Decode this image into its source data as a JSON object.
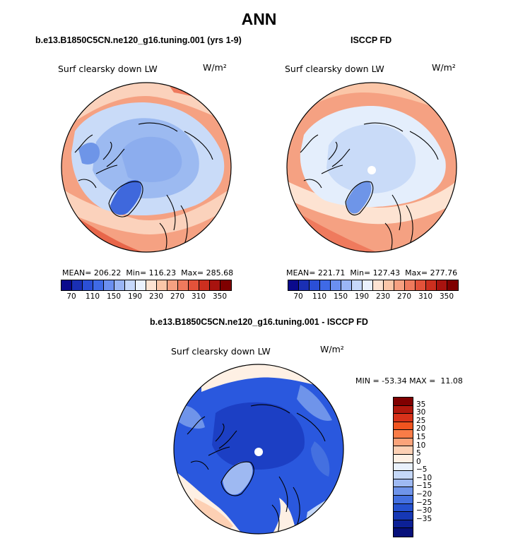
{
  "figure_title": "ANN",
  "panels": {
    "model": {
      "header": "b.e13.B1850C5CN.ne120_g16.tuning.001 (yrs 1-9)",
      "variable": "Surf clearsky down LW",
      "units": "W/m²",
      "stats": {
        "mean_label": "MEAN=",
        "mean": "206.22",
        "min_label": "Min=",
        "min": "116.23",
        "max_label": "Max=",
        "max": "285.68"
      },
      "fill": "mostly warm low-latitude ring, cool polar interior"
    },
    "obs": {
      "header": "ISCCP FD",
      "variable": "Surf clearsky down LW",
      "units": "W/m²",
      "stats": {
        "mean_label": "MEAN=",
        "mean": "221.71",
        "min_label": "Min=",
        "min": "127.43",
        "max_label": "Max=",
        "max": "277.76"
      }
    },
    "diff": {
      "header": "b.e13.B1850C5CN.ne120_g16.tuning.001 - ISCCP FD",
      "variable": "Surf clearsky down LW",
      "units": "W/m²",
      "minmax": "MIN = -53.34 MAX =  11.08"
    }
  },
  "abs_colorbar": {
    "colors": [
      "#0a0a8c",
      "#1a2fb4",
      "#2b4fd6",
      "#3f6ae6",
      "#6b8ff0",
      "#9ab5f5",
      "#c6d8fb",
      "#eaf1fd",
      "#fde3d2",
      "#fbc6a8",
      "#f6a081",
      "#ef7a5d",
      "#e3523a",
      "#cc2f1f",
      "#a8130f",
      "#7f0000"
    ],
    "labels": [
      "70",
      "110",
      "150",
      "190",
      "230",
      "270",
      "310",
      "350"
    ]
  },
  "diff_colorbar": {
    "colors": [
      "#800000",
      "#b2180d",
      "#d8321a",
      "#f0541f",
      "#f97c47",
      "#fba37a",
      "#fdd0b4",
      "#fef0e4",
      "#e9f1fc",
      "#c5d8f8",
      "#9eb9f2",
      "#6f94ea",
      "#4470e0",
      "#2551cf",
      "#1638b5",
      "#0c2096",
      "#07107a"
    ],
    "labels": [
      "35",
      "30",
      "25",
      "20",
      "15",
      "10",
      "5",
      "0",
      "−5",
      "−10",
      "−15",
      "−20",
      "−25",
      "−30",
      "−35"
    ]
  },
  "map_colors": {
    "warm_dark": "#e8664a",
    "warm": "#f5a182",
    "warm_light": "#fbd2bc",
    "neutral": "#eef3fb",
    "cool_light": "#c9dbf8",
    "cool": "#9cbaf1",
    "cool_mid": "#6e95e8",
    "cool_dark": "#3f68dc",
    "diff_base": "#2a58de",
    "diff_dark": "#1c3fc4"
  }
}
